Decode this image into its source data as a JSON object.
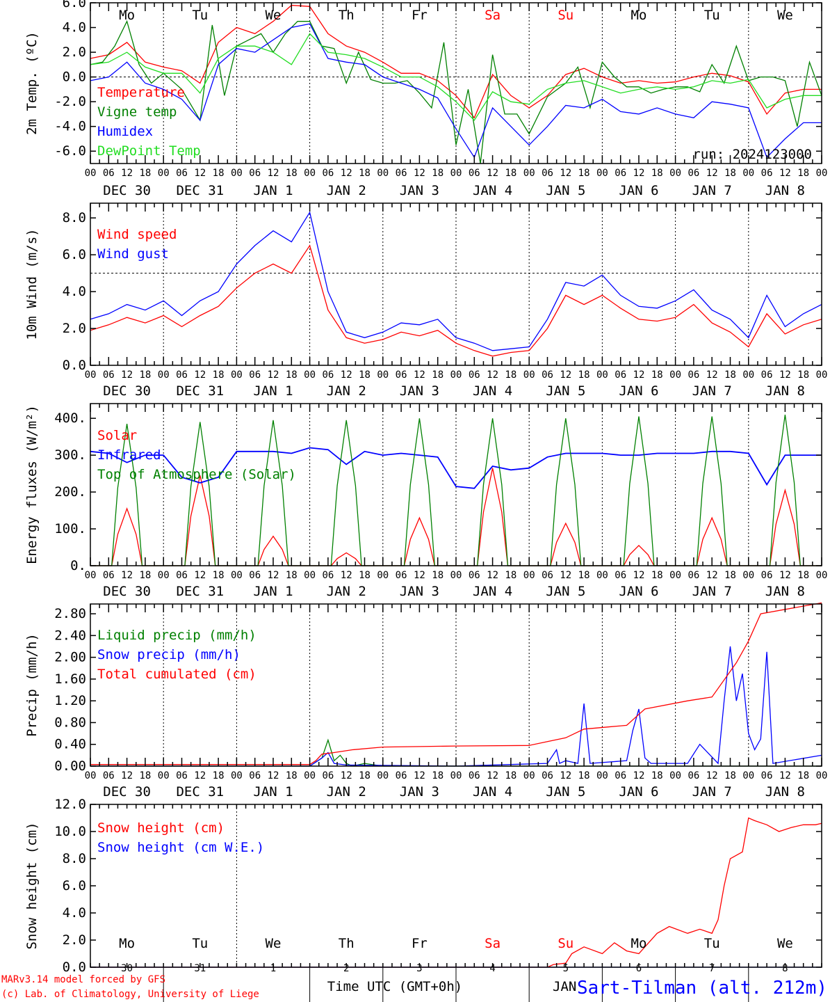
{
  "run_label": "run: 2024123000",
  "footer": {
    "model_line": "MARv3.14 model forced by GFS",
    "copyright_line": "(c) Lab. of Climatology, University of Liege",
    "time_label": "Time UTC (GMT+0h)",
    "overlap_text": "JAN",
    "station": "Sart-Tilman (alt. 212m)"
  },
  "colors": {
    "red": "#ff0000",
    "green": "#008000",
    "blue": "#0000ff",
    "lightgreen": "#22dd22",
    "weekend": "#ff0000"
  },
  "days": {
    "weekdays": [
      "Mo",
      "Tu",
      "We",
      "Th",
      "Fr",
      "Sa",
      "Su",
      "Mo",
      "Tu",
      "We"
    ],
    "weekend_flags": [
      false,
      false,
      false,
      false,
      false,
      true,
      true,
      false,
      false,
      false
    ],
    "date_labels": [
      "DEC 30",
      "DEC 31",
      "JAN  1",
      "JAN  2",
      "JAN  3",
      "JAN  4",
      "JAN  5",
      "JAN  6",
      "JAN  7",
      "JAN  8"
    ],
    "day_numbers": [
      "30",
      "31",
      "1",
      "2",
      "3",
      "4",
      "5",
      "6",
      "7",
      "8"
    ],
    "hour_ticks": [
      "00",
      "06",
      "12",
      "18"
    ],
    "last_hour": "00"
  },
  "chart_data": [
    {
      "type": "line",
      "ylabel": "2m Temp. (ºC)",
      "ylim": [
        -7,
        6
      ],
      "yticks": [
        "-6.0",
        "-4.0",
        "-2.0",
        "0.0",
        "2.0",
        "4.0",
        "6.0"
      ],
      "ytick_values": [
        -6,
        -4,
        -2,
        0,
        2,
        4,
        6
      ],
      "ref_line": 0,
      "xlim": [
        0,
        240
      ],
      "series": [
        {
          "name": "Temperature",
          "color": "#ff0000",
          "x": [
            0,
            6,
            12,
            18,
            24,
            30,
            36,
            42,
            48,
            54,
            60,
            66,
            72,
            78,
            84,
            90,
            96,
            102,
            108,
            114,
            120,
            126,
            132,
            138,
            144,
            150,
            156,
            162,
            168,
            174,
            180,
            186,
            192,
            198,
            204,
            210,
            216,
            222,
            228,
            234,
            240
          ],
          "values": [
            1.5,
            1.8,
            2.8,
            1.2,
            0.8,
            0.5,
            -0.5,
            2.8,
            4,
            3.5,
            4.5,
            5.8,
            5.7,
            3.5,
            2.5,
            2,
            1.2,
            0.3,
            0.3,
            -0.3,
            -1.5,
            -3.3,
            0.2,
            -1.5,
            -2.5,
            -1.5,
            0.2,
            0.7,
            0,
            -0.5,
            -0.3,
            -0.5,
            -0.4,
            0,
            0.3,
            0.1,
            -0.4,
            -3,
            -1.3,
            -1,
            -1
          ]
        },
        {
          "name": "Vigne temp",
          "color": "#008000",
          "x": [
            0,
            4,
            8,
            12,
            16,
            20,
            24,
            30,
            36,
            40,
            44,
            48,
            52,
            56,
            60,
            64,
            68,
            72,
            76,
            80,
            84,
            88,
            92,
            96,
            100,
            104,
            108,
            112,
            116,
            120,
            124,
            128,
            132,
            136,
            140,
            144,
            150,
            156,
            160,
            164,
            168,
            172,
            176,
            180,
            184,
            188,
            192,
            196,
            200,
            204,
            208,
            212,
            216,
            220,
            224,
            228,
            232,
            236,
            240
          ],
          "values": [
            1,
            1.2,
            2.5,
            4.5,
            1,
            -0.5,
            0.3,
            -1,
            -3.5,
            4.2,
            -1.5,
            2.5,
            3,
            3.5,
            2,
            3.5,
            4.5,
            4.5,
            2.5,
            2.3,
            -0.5,
            2,
            -0.2,
            -0.5,
            -0.5,
            -0.3,
            -1.3,
            -2.5,
            2.8,
            -5.5,
            -1,
            -7,
            1.8,
            -3,
            -3,
            -4.6,
            -1.6,
            -0.5,
            0.8,
            -2.5,
            1.2,
            0,
            -0.8,
            -0.8,
            -1.3,
            -1,
            -0.8,
            -0.8,
            -1.2,
            1,
            -0.5,
            2.5,
            -0.3,
            0,
            0,
            -0.3,
            -4,
            1.2,
            -1.5
          ]
        },
        {
          "name": "Humidex",
          "color": "#0000ff",
          "x": [
            0,
            6,
            12,
            18,
            24,
            30,
            36,
            42,
            48,
            54,
            60,
            66,
            72,
            78,
            84,
            90,
            96,
            102,
            108,
            114,
            120,
            126,
            132,
            138,
            144,
            150,
            156,
            162,
            168,
            174,
            180,
            186,
            192,
            198,
            204,
            210,
            216,
            222,
            228,
            234,
            240
          ],
          "values": [
            -0.3,
            0,
            1.2,
            -0.5,
            -1,
            -1.8,
            -3.5,
            1,
            2.3,
            2,
            3,
            4,
            4.3,
            1.5,
            1.2,
            1,
            0,
            -0.5,
            -1,
            -1.7,
            -4.2,
            -6.5,
            -2.5,
            -4,
            -5.5,
            -4,
            -2.3,
            -2.5,
            -1.8,
            -2.8,
            -3,
            -2.5,
            -3,
            -3.3,
            -2,
            -2.2,
            -2.5,
            -6.5,
            -5,
            -3.7,
            -3.7
          ]
        },
        {
          "name": "DewPoint Temp",
          "color": "#22dd22",
          "x": [
            0,
            6,
            12,
            18,
            24,
            30,
            36,
            42,
            48,
            54,
            60,
            66,
            72,
            78,
            84,
            90,
            96,
            102,
            108,
            114,
            120,
            126,
            132,
            138,
            144,
            150,
            156,
            162,
            168,
            174,
            180,
            186,
            192,
            198,
            204,
            210,
            216,
            222,
            228,
            234,
            240
          ],
          "values": [
            1,
            1.2,
            2,
            0.8,
            0.3,
            0.3,
            -1.3,
            1.5,
            2.5,
            2.5,
            2,
            1,
            3.5,
            2,
            1.8,
            1.5,
            0.8,
            0,
            0,
            -0.8,
            -2,
            -3.5,
            -1.2,
            -2,
            -2.2,
            -1,
            -0.5,
            -0.3,
            -0.8,
            -1.3,
            -1,
            -0.8,
            -1,
            -0.8,
            -0.3,
            -0.5,
            -0.2,
            -2.5,
            -1.8,
            -1.5,
            -1.5
          ]
        }
      ]
    },
    {
      "type": "line",
      "ylabel": "10m Wind (m/s)",
      "ylim": [
        0,
        8.8
      ],
      "yticks": [
        "0.0",
        "2.0",
        "4.0",
        "6.0",
        "8.0"
      ],
      "ytick_values": [
        0,
        2,
        4,
        6,
        8
      ],
      "ref_line": 5,
      "xlim": [
        0,
        240
      ],
      "series": [
        {
          "name": "Wind speed",
          "color": "#ff0000",
          "x": [
            0,
            6,
            12,
            18,
            24,
            30,
            36,
            42,
            48,
            54,
            60,
            66,
            72,
            78,
            84,
            90,
            96,
            102,
            108,
            114,
            120,
            126,
            132,
            138,
            144,
            150,
            156,
            162,
            168,
            174,
            180,
            186,
            192,
            198,
            204,
            210,
            216,
            222,
            228,
            234,
            240
          ],
          "values": [
            1.9,
            2.2,
            2.6,
            2.3,
            2.7,
            2.1,
            2.7,
            3.2,
            4.2,
            5,
            5.5,
            5,
            6.5,
            3,
            1.5,
            1.2,
            1.4,
            1.8,
            1.6,
            1.9,
            1.2,
            0.8,
            0.5,
            0.7,
            0.8,
            2,
            3.8,
            3.3,
            3.8,
            3.1,
            2.5,
            2.4,
            2.6,
            3.3,
            2.3,
            1.8,
            1,
            2.8,
            1.7,
            2.2,
            2.5
          ]
        },
        {
          "name": "Wind gust",
          "color": "#0000ff",
          "x": [
            0,
            6,
            12,
            18,
            24,
            30,
            36,
            42,
            48,
            54,
            60,
            66,
            72,
            78,
            84,
            90,
            96,
            102,
            108,
            114,
            120,
            126,
            132,
            138,
            144,
            150,
            156,
            162,
            168,
            174,
            180,
            186,
            192,
            198,
            204,
            210,
            216,
            222,
            228,
            234,
            240
          ],
          "values": [
            2.5,
            2.8,
            3.3,
            3,
            3.5,
            2.7,
            3.5,
            4,
            5.5,
            6.5,
            7.3,
            6.7,
            8.3,
            4,
            1.8,
            1.5,
            1.8,
            2.3,
            2.2,
            2.5,
            1.5,
            1.2,
            0.8,
            0.9,
            1,
            2.5,
            4.5,
            4.3,
            4.9,
            3.8,
            3.2,
            3.1,
            3.5,
            4.1,
            3,
            2.5,
            1.5,
            3.8,
            2.1,
            2.8,
            3.3
          ]
        }
      ]
    },
    {
      "type": "line",
      "ylabel": "Energy fluxes (W/m²)",
      "ylim": [
        0,
        440
      ],
      "yticks": [
        "0.",
        "100.",
        "200.",
        "300.",
        "400."
      ],
      "ytick_values": [
        0,
        100,
        200,
        300,
        400
      ],
      "xlim": [
        0,
        240
      ],
      "series": [
        {
          "name": "Solar",
          "color": "#ff0000",
          "peak_hour": 12,
          "peaks": [
            155,
            245,
            80,
            35,
            130,
            265,
            115,
            55,
            130,
            205
          ]
        },
        {
          "name": "Infrared",
          "color": "#0000ff",
          "x": [
            0,
            6,
            12,
            18,
            24,
            30,
            36,
            42,
            48,
            54,
            60,
            66,
            72,
            78,
            84,
            90,
            96,
            102,
            108,
            114,
            120,
            126,
            132,
            138,
            144,
            150,
            156,
            162,
            168,
            174,
            180,
            186,
            192,
            198,
            204,
            210,
            216,
            222,
            228,
            234,
            240
          ],
          "values": [
            310,
            305,
            280,
            300,
            300,
            240,
            225,
            240,
            310,
            310,
            310,
            305,
            320,
            315,
            275,
            310,
            300,
            305,
            300,
            295,
            215,
            210,
            270,
            260,
            265,
            295,
            305,
            305,
            305,
            300,
            300,
            305,
            305,
            305,
            310,
            310,
            305,
            220,
            300,
            300,
            300
          ]
        },
        {
          "name": "Top of Atmosphere (Solar)",
          "color": "#008000",
          "peak_hour": 12,
          "peaks": [
            385,
            390,
            395,
            395,
            400,
            400,
            400,
            405,
            405,
            410
          ]
        }
      ]
    },
    {
      "type": "line",
      "ylabel": "Precip (mm/h)",
      "ylim": [
        0,
        2.98
      ],
      "yticks": [
        "0.00",
        "0.40",
        "0.80",
        "1.20",
        "1.60",
        "2.00",
        "2.40",
        "2.80"
      ],
      "ytick_values": [
        0,
        0.4,
        0.8,
        1.2,
        1.6,
        2,
        2.4,
        2.8
      ],
      "xlim": [
        0,
        240
      ],
      "series": [
        {
          "name": "Liquid precip (mm/h)",
          "color": "#008000",
          "x": [
            0,
            72,
            76,
            78,
            80,
            82,
            84,
            86,
            90,
            96,
            240
          ],
          "values": [
            0,
            0,
            0.15,
            0.48,
            0.1,
            0.2,
            0.05,
            0,
            0.05,
            0,
            0
          ]
        },
        {
          "name": "Snow precip (mm/h)",
          "color": "#0000ff",
          "x": [
            0,
            72,
            76,
            78,
            80,
            84,
            120,
            150,
            153,
            154,
            156,
            160,
            162,
            164,
            176,
            178,
            180,
            182,
            184,
            196,
            200,
            206,
            208,
            210,
            212,
            214,
            216,
            218,
            220,
            222,
            224,
            240
          ],
          "values": [
            0,
            0,
            0.15,
            0.25,
            0.05,
            0.02,
            0,
            0.05,
            0.3,
            0.05,
            0.1,
            0.05,
            1.15,
            0.05,
            0.1,
            0.65,
            1.05,
            0.15,
            0.05,
            0.05,
            0.4,
            0.05,
            1.2,
            2.2,
            1.2,
            1.7,
            0.6,
            0.3,
            0.5,
            2.1,
            0.05,
            0.2
          ]
        },
        {
          "name": "Total cumulated (cm)",
          "color": "#ff0000",
          "x": [
            0,
            72,
            74,
            76,
            80,
            86,
            96,
            108,
            120,
            144,
            150,
            156,
            162,
            170,
            176,
            180,
            182,
            196,
            204,
            212,
            216,
            220,
            240
          ],
          "values": [
            0.03,
            0.03,
            0.1,
            0.22,
            0.25,
            0.3,
            0.35,
            0.36,
            0.37,
            0.38,
            0.45,
            0.52,
            0.68,
            0.72,
            0.75,
            0.95,
            1.05,
            1.2,
            1.27,
            1.9,
            2.3,
            2.8,
            3
          ]
        }
      ]
    },
    {
      "type": "line",
      "ylabel": "Snow height (cm)",
      "ylim": [
        0,
        12
      ],
      "yticks": [
        "0.0",
        "2.0",
        "4.0",
        "6.0",
        "8.0",
        "10.0",
        "12.0"
      ],
      "ytick_values": [
        0,
        2,
        4,
        6,
        8,
        10,
        12
      ],
      "xlim": [
        0,
        240
      ],
      "series": [
        {
          "name": "Snow height (cm)",
          "color": "#ff0000",
          "x": [
            0,
            150,
            152,
            156,
            158,
            162,
            168,
            172,
            176,
            180,
            186,
            190,
            196,
            200,
            204,
            206,
            208,
            210,
            214,
            216,
            218,
            222,
            226,
            230,
            234,
            238,
            240
          ],
          "values": [
            0,
            0,
            0.2,
            0.3,
            1,
            1.5,
            1,
            1.8,
            1.2,
            1,
            2.5,
            3,
            2.5,
            2.8,
            2.5,
            3.5,
            6,
            8,
            8.5,
            11,
            10.8,
            10.5,
            10,
            10.3,
            10.5,
            10.5,
            10.6
          ]
        },
        {
          "name": "Snow height (cm W.E.)",
          "color": "#0000ff",
          "x": [
            0,
            240
          ],
          "values": [
            0,
            0
          ]
        }
      ]
    }
  ]
}
